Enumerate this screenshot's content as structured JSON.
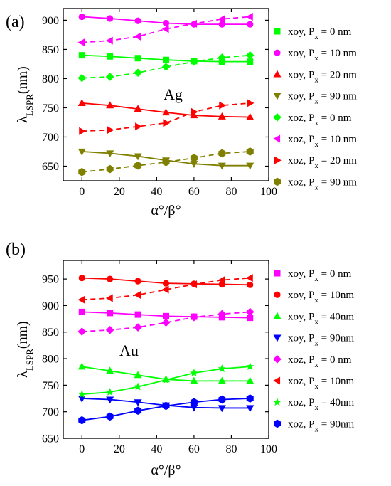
{
  "chart_data": [
    {
      "type": "line",
      "panel_label": "(a)",
      "annotation": "Ag",
      "xlabel": "α°/β°",
      "ylabel": "λLSPR(nm)",
      "ylabel_main": "λ",
      "ylabel_sub": "LSPR",
      "ylabel_unit": "(nm)",
      "xlim": [
        -10,
        100
      ],
      "ylim": [
        625,
        920
      ],
      "xticks": [
        0,
        20,
        40,
        60,
        80,
        100
      ],
      "yticks": [
        650,
        700,
        750,
        800,
        850,
        900
      ],
      "grid": false,
      "legend_position": "right",
      "x": [
        0,
        15,
        30,
        45,
        60,
        75,
        90
      ],
      "series": [
        {
          "name": "xoy, Px = 0 nm",
          "label_main": "xoy, P",
          "label_sub": "x",
          "label_tail": " = 0 nm",
          "color": "#00ff00",
          "marker": "square",
          "line": "solid",
          "values": [
            840,
            838,
            835,
            832,
            830,
            829,
            829
          ]
        },
        {
          "name": "xoy, Px = 10 nm",
          "label_main": "xoy, P",
          "label_sub": "x",
          "label_tail": " = 10 nm",
          "color": "#ff00ff",
          "marker": "circle",
          "line": "solid",
          "values": [
            906,
            903,
            899,
            895,
            893,
            893,
            893
          ]
        },
        {
          "name": "xoy, Px = 20 nm",
          "label_main": "xoy, P",
          "label_sub": "x",
          "label_tail": " = 20 nm",
          "color": "#ff0000",
          "marker": "triangle-up",
          "line": "solid",
          "values": [
            758,
            754,
            748,
            742,
            737,
            735,
            734
          ]
        },
        {
          "name": "xoy, Px = 90 nm",
          "label_main": "xoy, P",
          "label_sub": "x",
          "label_tail": " = 90 nm",
          "color": "#808000",
          "marker": "triangle-down",
          "line": "solid",
          "values": [
            675,
            672,
            667,
            660,
            654,
            651,
            651
          ]
        },
        {
          "name": "xoz, Px = 0 nm",
          "label_main": "xoz, P",
          "label_sub": "x",
          "label_tail": " = 0 nm",
          "color": "#00ff00",
          "marker": "diamond",
          "line": "dashed",
          "values": [
            801,
            803,
            810,
            820,
            829,
            836,
            840
          ]
        },
        {
          "name": "xoz, Px = 10 nm",
          "label_main": "xoz, P",
          "label_sub": "x",
          "label_tail": " = 10 nm",
          "color": "#ff00ff",
          "marker": "triangle-left",
          "line": "dashed",
          "values": [
            862,
            865,
            872,
            885,
            894,
            902,
            906
          ]
        },
        {
          "name": "xoz, Px = 20 nm",
          "label_main": "xoz, P",
          "label_sub": "x",
          "label_tail": " = 20 nm",
          "color": "#ff0000",
          "marker": "triangle-right",
          "line": "dashed",
          "values": [
            710,
            712,
            718,
            724,
            743,
            754,
            758
          ]
        },
        {
          "name": "xoz, Px = 90 nm",
          "label_main": "xoz, P",
          "label_sub": "x",
          "label_tail": " = 90 nm",
          "color": "#808000",
          "marker": "hexagon",
          "line": "dashed",
          "values": [
            640,
            645,
            651,
            657,
            664,
            672,
            675
          ]
        }
      ]
    },
    {
      "type": "line",
      "panel_label": "(b)",
      "annotation": "Au",
      "xlabel": "α°/β°",
      "ylabel": "λLSPR(nm)",
      "ylabel_main": "λ",
      "ylabel_sub": "LSPR",
      "ylabel_unit": "(nm)",
      "xlim": [
        -10,
        100
      ],
      "ylim": [
        650,
        985
      ],
      "xticks": [
        0,
        20,
        40,
        60,
        80,
        100
      ],
      "yticks": [
        650,
        700,
        750,
        800,
        850,
        900,
        950
      ],
      "grid": false,
      "legend_position": "right",
      "x": [
        0,
        15,
        30,
        45,
        60,
        75,
        90
      ],
      "series": [
        {
          "name": "xoy, Px = 0 nm",
          "label_main": "xoy, P",
          "label_sub": "x",
          "label_tail": " = 0 nm",
          "color": "#ff00ff",
          "marker": "square",
          "line": "solid",
          "values": [
            888,
            886,
            883,
            880,
            879,
            878,
            877
          ]
        },
        {
          "name": "xoy, Px = 10nm",
          "label_main": "xoy, P",
          "label_sub": "x",
          "label_tail": " = 10nm",
          "color": "#ff0000",
          "marker": "circle",
          "line": "solid",
          "values": [
            952,
            950,
            946,
            942,
            941,
            940,
            939
          ]
        },
        {
          "name": "xoy, Px = 40nm",
          "label_main": "xoy, P",
          "label_sub": "x",
          "label_tail": " = 40nm",
          "color": "#00ff00",
          "marker": "triangle-up",
          "line": "solid",
          "values": [
            785,
            777,
            769,
            761,
            758,
            758,
            758
          ]
        },
        {
          "name": "xoy, Px = 90nm",
          "label_main": "xoy, P",
          "label_sub": "x",
          "label_tail": " = 90nm",
          "color": "#0000ff",
          "marker": "triangle-down",
          "line": "solid",
          "values": [
            725,
            723,
            718,
            712,
            708,
            707,
            707
          ]
        },
        {
          "name": "xoz, Px = 0 nm",
          "label_main": "xoz, P",
          "label_sub": "x",
          "label_tail": " = 0 nm",
          "color": "#ff00ff",
          "marker": "diamond",
          "line": "dashed",
          "values": [
            851,
            854,
            859,
            868,
            878,
            884,
            888
          ]
        },
        {
          "name": "xoz, Px = 10nm",
          "label_main": "xoz, P",
          "label_sub": "x",
          "label_tail": " = 10nm",
          "color": "#ff0000",
          "marker": "triangle-left",
          "line": "dashed",
          "values": [
            911,
            914,
            920,
            930,
            940,
            948,
            952
          ]
        },
        {
          "name": "xoz, Px = 40nm",
          "label_main": "xoz, P",
          "label_sub": "x",
          "label_tail": " = 40nm",
          "color": "#00ff00",
          "marker": "star",
          "line": "solid",
          "values": [
            733,
            737,
            747,
            760,
            773,
            781,
            785
          ]
        },
        {
          "name": "xoz, Px = 90nm",
          "label_main": "xoz, P",
          "label_sub": "x",
          "label_tail": " = 90nm",
          "color": "#0000ff",
          "marker": "hexagon",
          "line": "solid",
          "values": [
            684,
            691,
            702,
            711,
            718,
            723,
            725
          ]
        }
      ]
    }
  ]
}
